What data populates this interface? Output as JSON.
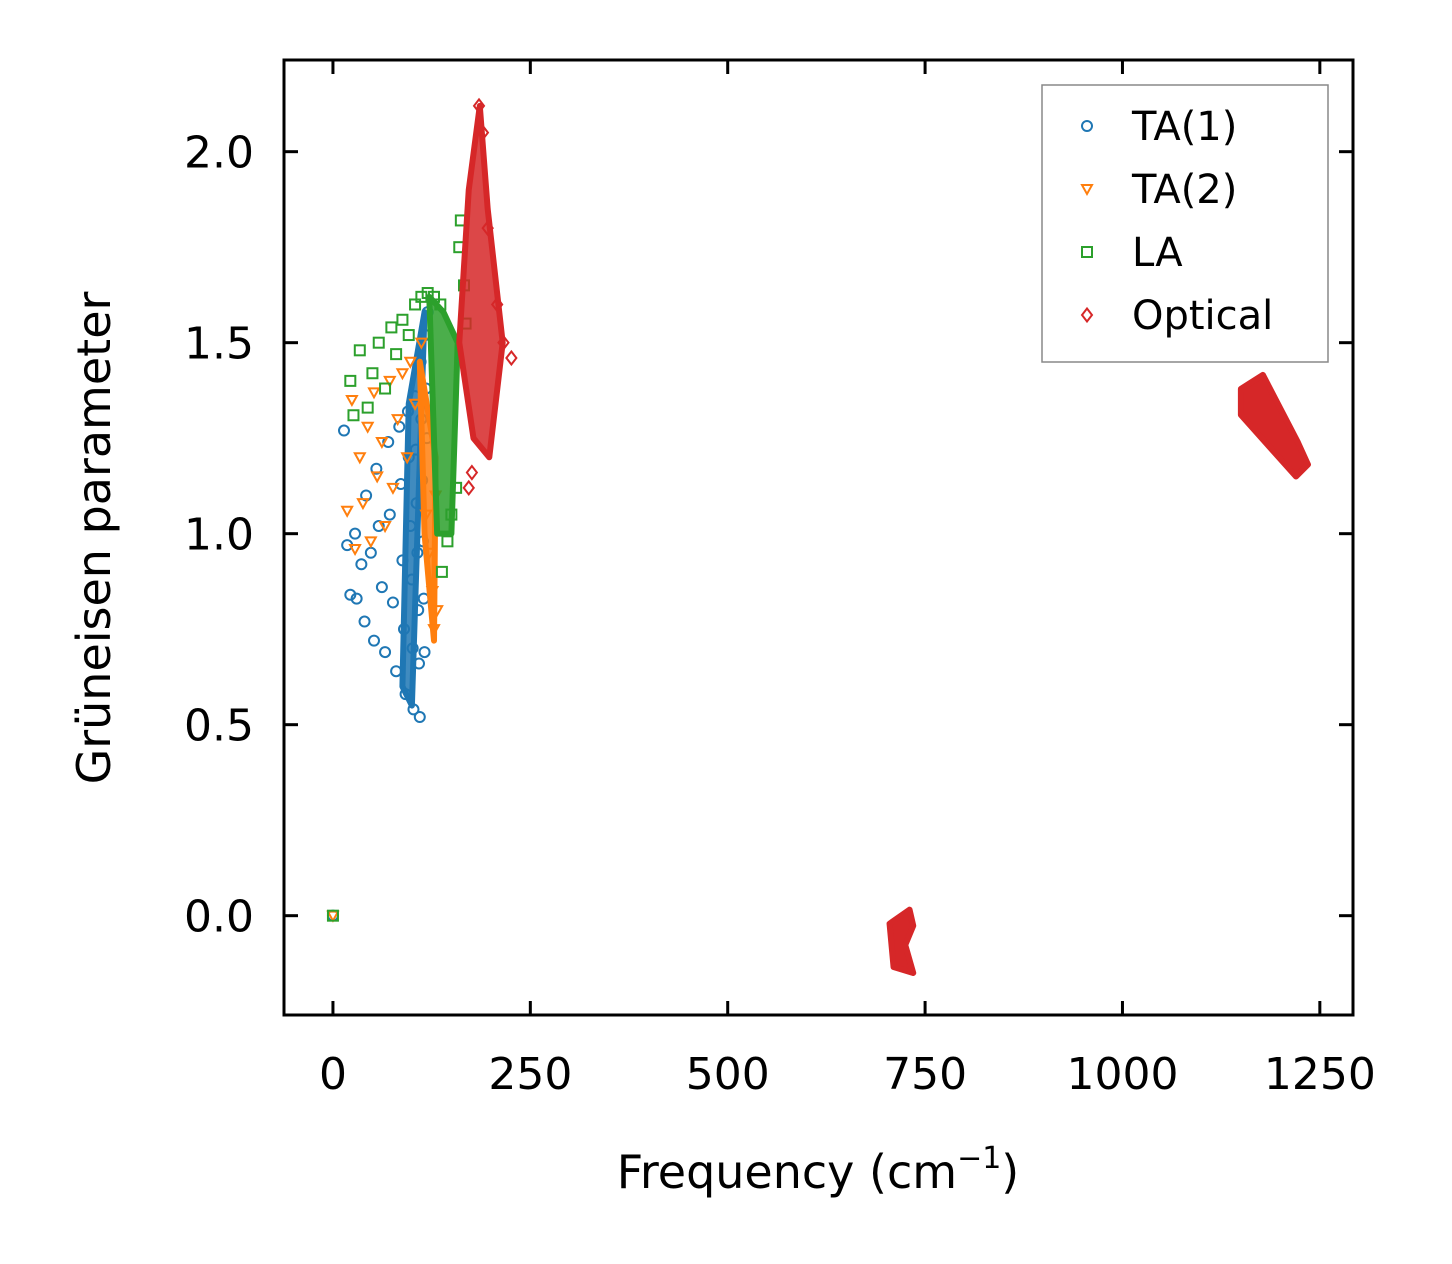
{
  "chart_data": {
    "type": "scatter",
    "title": "",
    "xlabel": "Frequency (cm",
    "xlabel_sup": "−1",
    "xlabel_close": ")",
    "ylabel": "Grüneisen parameter",
    "xlim": [
      -62,
      1292
    ],
    "ylim": [
      -0.26,
      2.24
    ],
    "xticks": [
      0,
      250,
      500,
      750,
      1000,
      1250
    ],
    "xtick_labels": [
      "0",
      "250",
      "500",
      "750",
      "1000",
      "1250"
    ],
    "yticks": [
      0.0,
      0.5,
      1.0,
      1.5,
      2.0
    ],
    "ytick_labels": [
      "0.0",
      "0.5",
      "1.0",
      "1.5",
      "2.0"
    ],
    "legend_position": "top-right",
    "series": [
      {
        "name": "TA(1)",
        "marker": "circle",
        "color": "#1f77b4",
        "points": [
          [
            0,
            0
          ],
          [
            14,
            1.27
          ],
          [
            18,
            0.97
          ],
          [
            22,
            0.84
          ],
          [
            28,
            1.0
          ],
          [
            30,
            0.83
          ],
          [
            36,
            0.92
          ],
          [
            40,
            0.77
          ],
          [
            42,
            1.1
          ],
          [
            48,
            0.95
          ],
          [
            52,
            0.72
          ],
          [
            55,
            1.17
          ],
          [
            58,
            1.02
          ],
          [
            62,
            0.86
          ],
          [
            66,
            0.69
          ],
          [
            70,
            1.24
          ],
          [
            72,
            1.05
          ],
          [
            76,
            0.82
          ],
          [
            80,
            0.64
          ],
          [
            84,
            1.28
          ],
          [
            86,
            1.13
          ],
          [
            88,
            0.93
          ],
          [
            90,
            0.75
          ],
          [
            92,
            0.58
          ],
          [
            95,
            1.32
          ],
          [
            96,
            1.2
          ],
          [
            98,
            1.02
          ],
          [
            100,
            0.88
          ],
          [
            101,
            0.7
          ],
          [
            102,
            0.54
          ],
          [
            104,
            1.36
          ],
          [
            105,
            1.22
          ],
          [
            106,
            1.08
          ],
          [
            107,
            0.95
          ],
          [
            108,
            0.8
          ],
          [
            109,
            0.66
          ],
          [
            110,
            0.52
          ],
          [
            111,
            1.45
          ],
          [
            112,
            1.3
          ],
          [
            113,
            1.14
          ],
          [
            114,
            0.98
          ],
          [
            115,
            0.83
          ],
          [
            116,
            0.69
          ],
          [
            117,
            1.52
          ],
          [
            118,
            1.38
          ],
          [
            119,
            1.25
          ],
          [
            120,
            1.58
          ]
        ],
        "cloud": [
          [
            100,
            0.55
          ],
          [
            116,
            1.58
          ],
          [
            96,
            1.34
          ],
          [
            88,
            0.6
          ]
        ]
      },
      {
        "name": "TA(2)",
        "marker": "triangle-down",
        "color": "#ff7f0e",
        "points": [
          [
            0,
            0
          ],
          [
            18,
            1.06
          ],
          [
            24,
            1.35
          ],
          [
            28,
            0.96
          ],
          [
            34,
            1.2
          ],
          [
            38,
            1.08
          ],
          [
            44,
            1.28
          ],
          [
            48,
            0.98
          ],
          [
            52,
            1.37
          ],
          [
            56,
            1.15
          ],
          [
            62,
            1.24
          ],
          [
            66,
            1.02
          ],
          [
            72,
            1.4
          ],
          [
            76,
            1.12
          ],
          [
            82,
            1.3
          ],
          [
            88,
            1.42
          ],
          [
            94,
            1.2
          ],
          [
            98,
            1.45
          ],
          [
            104,
            1.34
          ],
          [
            112,
            1.5
          ],
          [
            118,
            1.05
          ],
          [
            122,
            0.95
          ],
          [
            126,
            0.85
          ],
          [
            128,
            0.75
          ],
          [
            130,
            1.1
          ],
          [
            132,
            0.8
          ]
        ],
        "cloud": [
          [
            110,
            1.45
          ],
          [
            130,
            1.2
          ],
          [
            128,
            0.72
          ],
          [
            116,
            1.0
          ]
        ]
      },
      {
        "name": "LA",
        "marker": "square",
        "color": "#2ca02c",
        "points": [
          [
            0,
            0
          ],
          [
            22,
            1.4
          ],
          [
            26,
            1.31
          ],
          [
            34,
            1.48
          ],
          [
            44,
            1.33
          ],
          [
            50,
            1.42
          ],
          [
            58,
            1.5
          ],
          [
            66,
            1.38
          ],
          [
            74,
            1.54
          ],
          [
            80,
            1.47
          ],
          [
            88,
            1.56
          ],
          [
            96,
            1.52
          ],
          [
            104,
            1.6
          ],
          [
            112,
            1.62
          ],
          [
            120,
            1.63
          ],
          [
            128,
            1.62
          ],
          [
            136,
            1.6
          ],
          [
            138,
            0.9
          ],
          [
            145,
            0.98
          ],
          [
            150,
            1.05
          ],
          [
            156,
            1.12
          ],
          [
            160,
            1.75
          ],
          [
            162,
            1.82
          ],
          [
            166,
            1.65
          ],
          [
            168,
            1.55
          ]
        ],
        "cloud": [
          [
            122,
            1.62
          ],
          [
            140,
            1.58
          ],
          [
            158,
            1.5
          ],
          [
            150,
            1.0
          ],
          [
            132,
            1.0
          ]
        ]
      },
      {
        "name": "Optical",
        "marker": "diamond",
        "color": "#d62728",
        "points": [
          [
            172,
            1.12
          ],
          [
            176,
            1.16
          ],
          [
            185,
            2.12
          ],
          [
            190,
            2.05
          ],
          [
            196,
            1.8
          ],
          [
            208,
            1.6
          ],
          [
            216,
            1.5
          ],
          [
            226,
            1.46
          ]
        ],
        "cloud": [
          [
            160,
            1.5
          ],
          [
            172,
            1.9
          ],
          [
            186,
            2.12
          ],
          [
            196,
            1.85
          ],
          [
            215,
            1.5
          ],
          [
            198,
            1.2
          ],
          [
            178,
            1.25
          ]
        ],
        "clusters": [
          {
            "x_min": 705,
            "x_max": 735,
            "y_min": -0.15,
            "y_max": 0.0
          },
          {
            "x_min": 1150,
            "x_max": 1235,
            "y_min": 1.16,
            "y_max": 1.4
          }
        ]
      }
    ]
  }
}
